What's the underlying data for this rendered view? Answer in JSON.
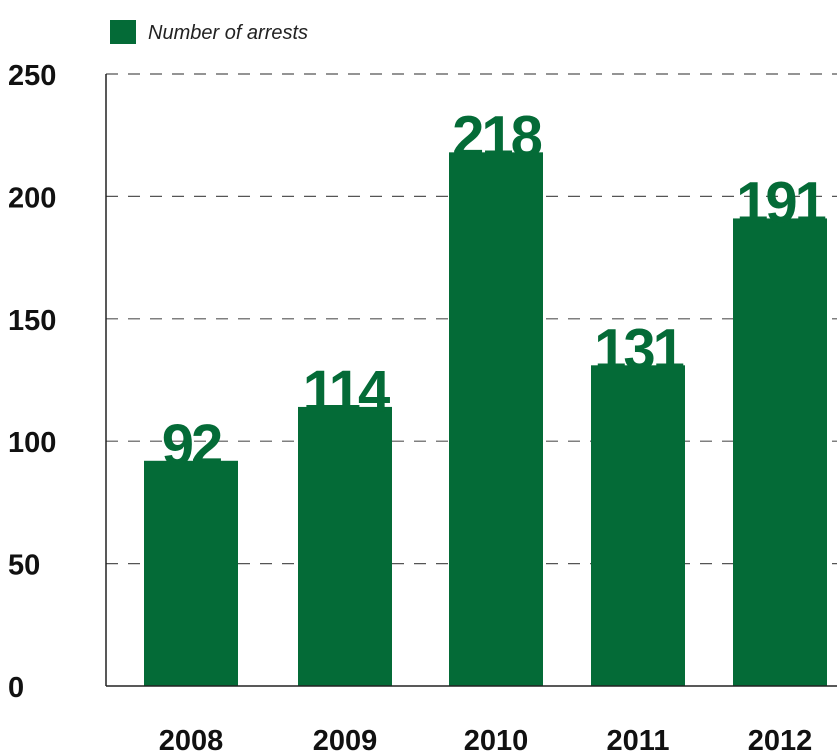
{
  "chart_data": {
    "type": "bar",
    "categories": [
      "2008",
      "2009",
      "2010",
      "2011",
      "2012"
    ],
    "series": [
      {
        "name": "Number of arrests",
        "values": [
          92,
          114,
          218,
          131,
          191
        ]
      }
    ],
    "data_labels": [
      "92",
      "114",
      "218",
      "131",
      "191"
    ],
    "yticks": [
      "0",
      "50",
      "100",
      "150",
      "200",
      "250"
    ],
    "ylim": [
      0,
      250
    ],
    "grid": true,
    "legend_position": "top-left",
    "bar_color": "#046b37",
    "label_color": "#046b37"
  }
}
